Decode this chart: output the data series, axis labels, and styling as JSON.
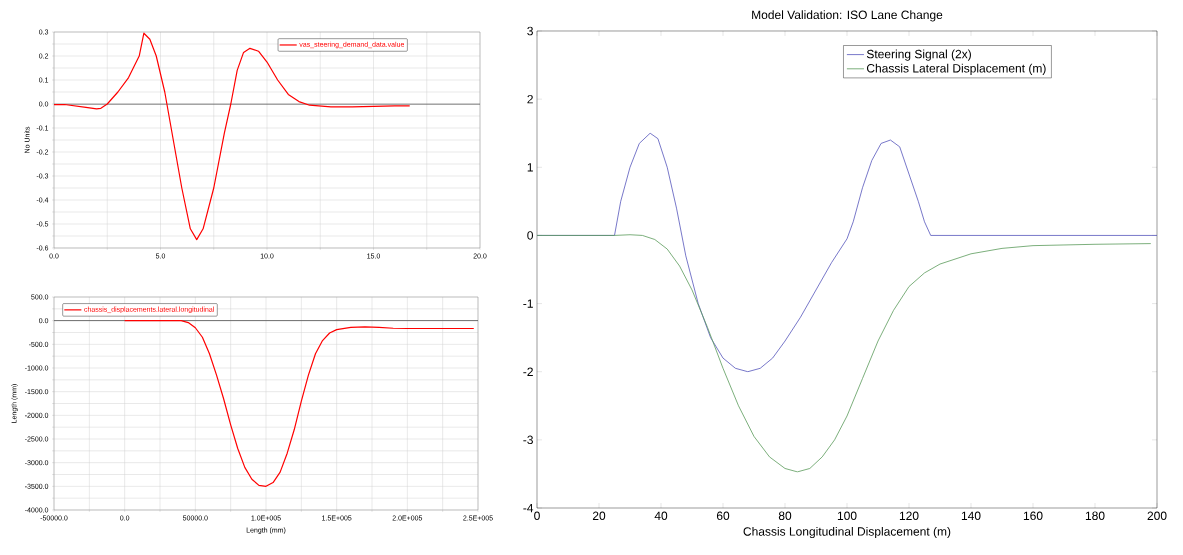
{
  "chart_data": [
    {
      "type": "line",
      "ylabel": "No Units",
      "legend": "top right",
      "grid": true,
      "line_style": "solid",
      "marker": "none",
      "xlim": [
        0,
        20
      ],
      "ylim": [
        -0.6,
        0.3
      ],
      "xticks": [
        {
          "value": 0,
          "label": "0.0"
        },
        {
          "value": 2.5,
          "label": null
        },
        {
          "value": 5,
          "label": "5.0"
        },
        {
          "value": 7.5,
          "label": null
        },
        {
          "value": 10,
          "label": "10.0"
        },
        {
          "value": 12.5,
          "label": null
        },
        {
          "value": 15,
          "label": "15.0"
        },
        {
          "value": 17.5,
          "label": null
        },
        {
          "value": 20,
          "label": "20.0"
        }
      ],
      "yticks": [
        {
          "value": 0.3,
          "label": "0.3"
        },
        {
          "value": 0.25,
          "label": null
        },
        {
          "value": 0.2,
          "label": "0.2"
        },
        {
          "value": 0.15,
          "label": null
        },
        {
          "value": 0.1,
          "label": "0.1"
        },
        {
          "value": 0.05,
          "label": null
        },
        {
          "value": 0,
          "label": "0.0"
        },
        {
          "value": -0.05,
          "label": null
        },
        {
          "value": -0.1,
          "label": "-0.1"
        },
        {
          "value": -0.15,
          "label": null
        },
        {
          "value": -0.2,
          "label": "-0.2"
        },
        {
          "value": -0.25,
          "label": null
        },
        {
          "value": -0.3,
          "label": "-0.3"
        },
        {
          "value": -0.35,
          "label": null
        },
        {
          "value": -0.4,
          "label": "-0.4"
        },
        {
          "value": -0.45,
          "label": null
        },
        {
          "value": -0.5,
          "label": "-0.5"
        },
        {
          "value": -0.55,
          "label": null
        },
        {
          "value": -0.6,
          "label": "-0.6"
        }
      ],
      "ref_lines": [
        {
          "axis": "y",
          "value": 0,
          "color": "#555555"
        }
      ],
      "series": [
        {
          "name": "vas_steering_demand_data.value",
          "color": "#ff0000",
          "x": [
            0,
            0.5,
            1,
            1.5,
            2,
            2.2,
            2.5,
            3,
            3.5,
            4,
            4.22,
            4.5,
            4.8,
            5.2,
            5.6,
            6,
            6.4,
            6.7,
            7,
            7.5,
            8,
            8.3,
            8.6,
            8.9,
            9.2,
            9.6,
            10,
            10.5,
            11,
            11.5,
            12,
            13,
            14,
            15,
            16,
            16.7
          ],
          "values": [
            -0.003,
            -0.002,
            -0.008,
            -0.014,
            -0.02,
            -0.018,
            0.0,
            0.05,
            0.11,
            0.2,
            0.295,
            0.27,
            0.2,
            0.05,
            -0.15,
            -0.35,
            -0.52,
            -0.565,
            -0.52,
            -0.35,
            -0.12,
            0.0,
            0.14,
            0.215,
            0.232,
            0.22,
            0.175,
            0.1,
            0.04,
            0.01,
            -0.005,
            -0.012,
            -0.012,
            -0.01,
            -0.008,
            -0.008
          ]
        }
      ]
    },
    {
      "type": "line",
      "xlabel": "Length (mm)",
      "ylabel": "Length (mm)",
      "legend": "top left",
      "grid": true,
      "line_style": "solid",
      "marker": "none",
      "xlim": [
        -50000,
        250000
      ],
      "ylim": [
        -4000,
        500
      ],
      "xticks": [
        {
          "value": -50000,
          "label": "-50000.0"
        },
        {
          "value": -25000,
          "label": null
        },
        {
          "value": 0,
          "label": "0.0"
        },
        {
          "value": 25000,
          "label": null
        },
        {
          "value": 50000,
          "label": "50000.0"
        },
        {
          "value": 75000,
          "label": null
        },
        {
          "value": 100000,
          "label": "1.0E+005"
        },
        {
          "value": 125000,
          "label": null
        },
        {
          "value": 150000,
          "label": "1.5E+005"
        },
        {
          "value": 175000,
          "label": null
        },
        {
          "value": 200000,
          "label": "2.0E+005"
        },
        {
          "value": 225000,
          "label": null
        },
        {
          "value": 250000,
          "label": "2.5E+005"
        }
      ],
      "yticks": [
        {
          "value": 500,
          "label": "500.0"
        },
        {
          "value": 250,
          "label": null
        },
        {
          "value": 0,
          "label": "0.0"
        },
        {
          "value": -250,
          "label": null
        },
        {
          "value": -500,
          "label": "-500.0"
        },
        {
          "value": -750,
          "label": null
        },
        {
          "value": -1000,
          "label": "-1000.0"
        },
        {
          "value": -1250,
          "label": null
        },
        {
          "value": -1500,
          "label": "-1500.0"
        },
        {
          "value": -1750,
          "label": null
        },
        {
          "value": -2000,
          "label": "-2000.0"
        },
        {
          "value": -2250,
          "label": null
        },
        {
          "value": -2500,
          "label": "-2500.0"
        },
        {
          "value": -2750,
          "label": null
        },
        {
          "value": -3000,
          "label": "-3000.0"
        },
        {
          "value": -3250,
          "label": null
        },
        {
          "value": -3500,
          "label": "-3500.0"
        },
        {
          "value": -3750,
          "label": null
        },
        {
          "value": -4000,
          "label": "-4000.0"
        }
      ],
      "ref_lines": [
        {
          "axis": "y",
          "value": 0,
          "color": "#555555"
        }
      ],
      "series": [
        {
          "name": "chassis_displacements.lateral.longitudinal",
          "color": "#ff0000",
          "x": [
            0,
            20000,
            35000,
            40000,
            45000,
            50000,
            55000,
            60000,
            65000,
            70000,
            75000,
            80000,
            85000,
            90000,
            95000,
            100000,
            105000,
            110000,
            115000,
            120000,
            125000,
            130000,
            135000,
            140000,
            145000,
            150000,
            160000,
            170000,
            180000,
            190000,
            200000,
            220000,
            247000
          ],
          "values": [
            0,
            0,
            0,
            0,
            -40,
            -150,
            -350,
            -700,
            -1150,
            -1650,
            -2200,
            -2700,
            -3100,
            -3350,
            -3480,
            -3500,
            -3420,
            -3200,
            -2800,
            -2300,
            -1700,
            -1150,
            -700,
            -420,
            -260,
            -190,
            -140,
            -130,
            -140,
            -160,
            -165,
            -165,
            -165
          ]
        }
      ]
    },
    {
      "type": "line",
      "title": "Model Validation: ISO Lane Change",
      "xlabel": "Chassis Longitudinal Displacement (m)",
      "legend": "top right",
      "grid": false,
      "line_style": "solid",
      "marker": "none",
      "xlim": [
        0,
        200
      ],
      "ylim": [
        -4,
        3
      ],
      "xticks": [
        0,
        20,
        40,
        60,
        80,
        100,
        120,
        140,
        160,
        180,
        200
      ],
      "yticks": [
        -4,
        -3,
        -2,
        -1,
        0,
        1,
        2,
        3
      ],
      "series": [
        {
          "name": "Steering Signal (2x)",
          "color": "#5555bb",
          "x": [
            0,
            25,
            27,
            30,
            33,
            36.5,
            39,
            42,
            45,
            48,
            52,
            56,
            60,
            64,
            68,
            72,
            76,
            80,
            85,
            90,
            95,
            100,
            102,
            105,
            108,
            111,
            114,
            117,
            120,
            123,
            125,
            127,
            200
          ],
          "values": [
            0,
            0,
            0.5,
            1.0,
            1.35,
            1.5,
            1.42,
            1.0,
            0.4,
            -0.3,
            -1.0,
            -1.5,
            -1.8,
            -1.95,
            -2.0,
            -1.95,
            -1.8,
            -1.55,
            -1.2,
            -0.8,
            -0.4,
            -0.05,
            0.2,
            0.7,
            1.1,
            1.35,
            1.4,
            1.3,
            0.9,
            0.5,
            0.2,
            0,
            0
          ]
        },
        {
          "name": "Chassis Lateral Displacement (m)",
          "color": "#5a9a5a",
          "x": [
            0,
            25,
            30,
            34,
            38,
            42,
            46,
            50,
            55,
            60,
            65,
            70,
            75,
            80,
            84,
            88,
            92,
            96,
            100,
            105,
            110,
            115,
            120,
            125,
            130,
            140,
            150,
            160,
            180,
            198
          ],
          "values": [
            0,
            0,
            0.01,
            0.0,
            -0.06,
            -0.2,
            -0.45,
            -0.8,
            -1.35,
            -1.95,
            -2.5,
            -2.95,
            -3.25,
            -3.42,
            -3.47,
            -3.42,
            -3.25,
            -3.0,
            -2.65,
            -2.1,
            -1.55,
            -1.1,
            -0.75,
            -0.55,
            -0.42,
            -0.27,
            -0.19,
            -0.15,
            -0.13,
            -0.12
          ]
        }
      ]
    }
  ]
}
